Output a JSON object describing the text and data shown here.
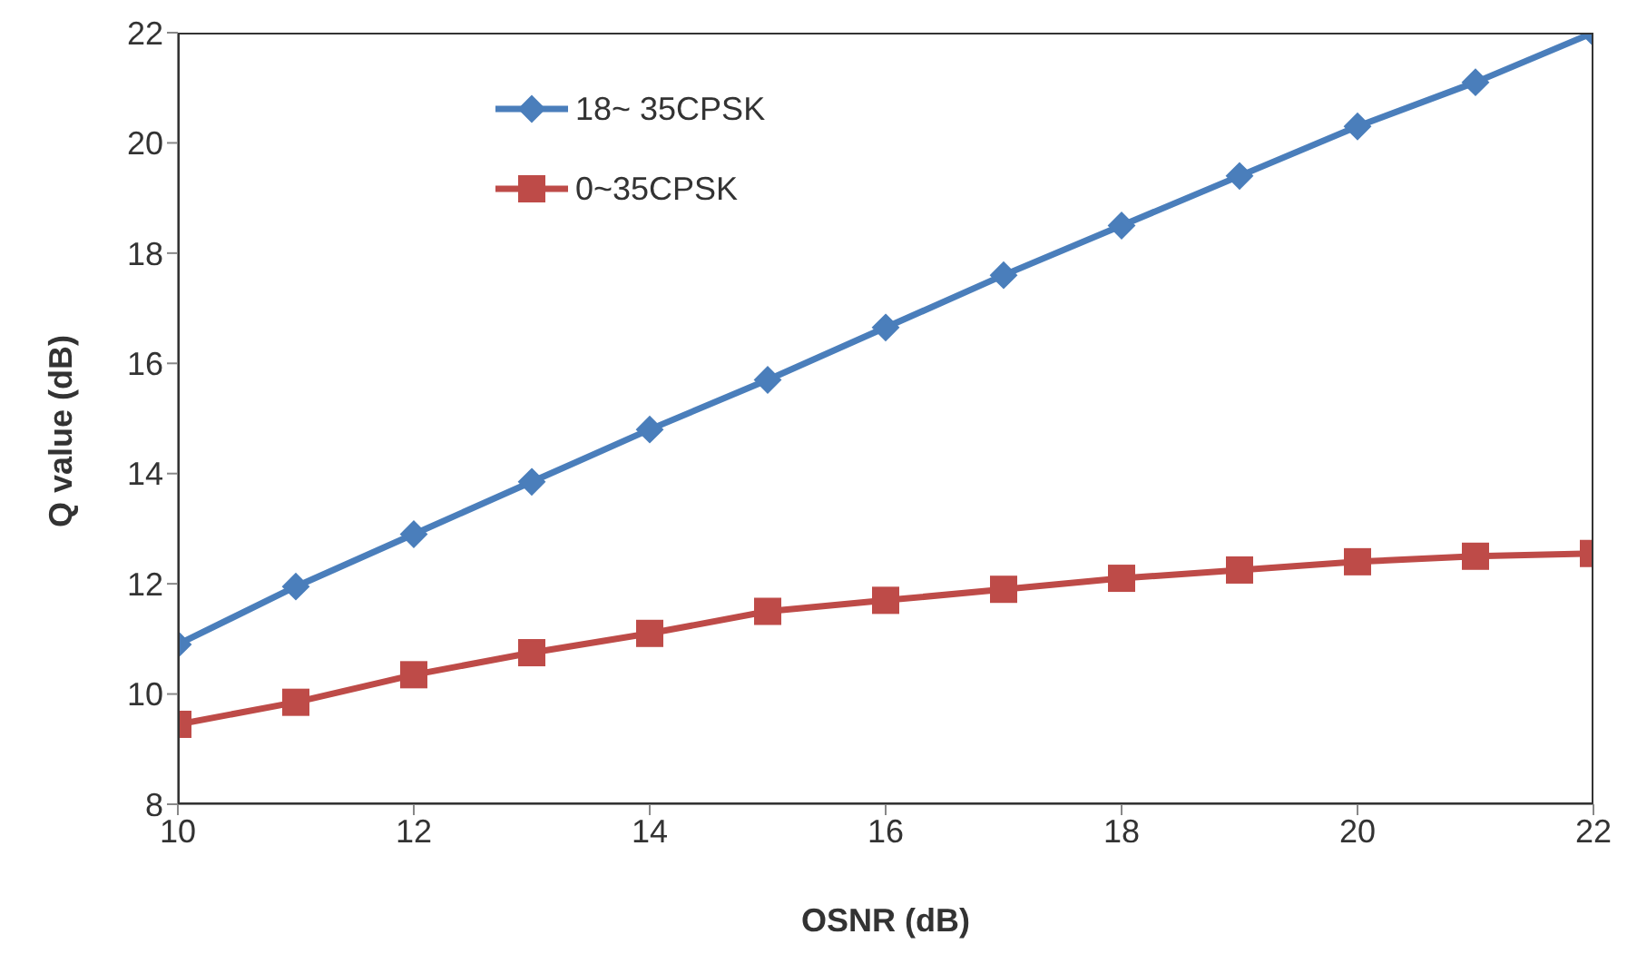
{
  "chart_data": {
    "type": "line",
    "xlabel": "OSNR (dB)",
    "ylabel": "Q value (dB)",
    "x": [
      10,
      11,
      12,
      13,
      14,
      15,
      16,
      17,
      18,
      19,
      20,
      21,
      22
    ],
    "series": [
      {
        "name": "18~ 35CPSK",
        "color": "#4a7ebb",
        "marker": "diamond",
        "values": [
          10.9,
          11.95,
          12.9,
          13.85,
          14.8,
          15.7,
          16.65,
          17.6,
          18.5,
          19.4,
          20.3,
          21.1,
          22
        ]
      },
      {
        "name": "0~35CPSK",
        "color": "#be4b48",
        "marker": "square",
        "values": [
          9.45,
          9.85,
          10.35,
          10.75,
          11.1,
          11.5,
          11.7,
          11.9,
          12.1,
          12.25,
          12.4,
          12.5,
          12.55
        ]
      }
    ],
    "xlim": [
      10,
      22
    ],
    "xticks": [
      10,
      12,
      14,
      16,
      18,
      20,
      22
    ],
    "ylim": [
      8,
      22
    ],
    "yticks": [
      8,
      10,
      12,
      14,
      16,
      18,
      20,
      22
    ],
    "grid": false,
    "legend": "top left",
    "line_style": "solid"
  }
}
